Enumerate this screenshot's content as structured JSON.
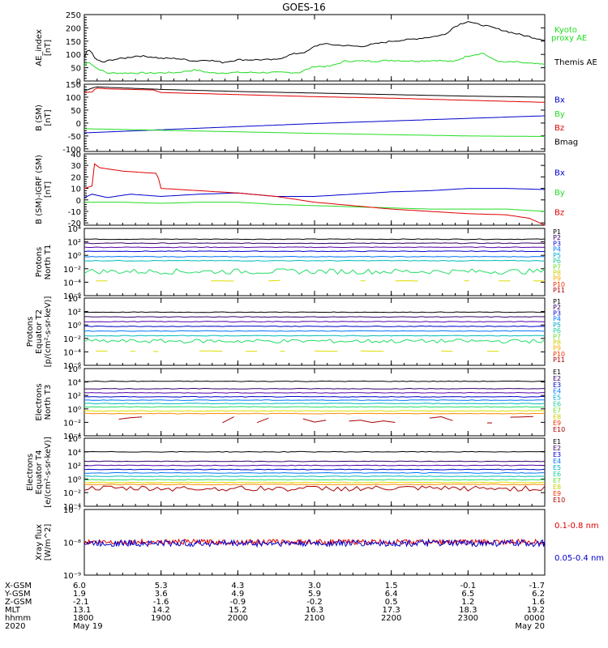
{
  "title": "GOES-16",
  "colors": {
    "black": "#000000",
    "red": "#e00000",
    "green": "#22dd22",
    "blue": "#0000cc",
    "axis": "#000000"
  },
  "chart_data": [
    {
      "type": "line",
      "id": "ae",
      "ylabel": [
        "AE_index",
        "[nT]"
      ],
      "ylim": [
        0,
        250
      ],
      "yticks": [
        "0",
        "50",
        "100",
        "150",
        "200",
        "250"
      ],
      "legend": [
        {
          "text": "Kyoto",
          "color": "#22dd22"
        },
        {
          "text": "proxy AE",
          "color": "#22dd22"
        },
        {
          "text": "Themis AE",
          "color": "#000000"
        }
      ],
      "series": [
        {
          "name": "Kyoto proxy AE",
          "color": "#22dd22",
          "x": [
            0,
            0.05,
            0.15,
            0.3,
            0.55,
            0.9,
            1.2,
            1.45,
            1.65,
            2.0,
            2.4,
            2.8,
            3.0,
            3.2,
            3.4,
            3.6,
            3.8,
            4.0,
            4.3,
            4.6,
            4.8,
            5.0,
            5.2,
            5.3,
            5.45,
            5.6,
            5.8,
            6.0
          ],
          "y": [
            55,
            75,
            50,
            30,
            30,
            30,
            32,
            42,
            30,
            32,
            32,
            32,
            55,
            55,
            75,
            75,
            75,
            78,
            75,
            78,
            72,
            95,
            105,
            85,
            70,
            72,
            66,
            62
          ]
        },
        {
          "name": "Themis AE",
          "color": "#000000",
          "x": [
            0,
            0.05,
            0.1,
            0.15,
            0.25,
            0.35,
            0.5,
            0.7,
            0.9,
            1.0,
            1.2,
            1.45,
            1.6,
            1.8,
            2.0,
            2.2,
            2.5,
            2.7,
            2.9,
            3.0,
            3.1,
            3.3,
            3.6,
            3.8,
            4.0,
            4.2,
            4.5,
            4.7,
            4.8,
            4.9,
            5.0,
            5.1,
            5.2,
            5.4,
            5.6,
            5.75,
            5.9,
            6.0
          ],
          "y": [
            90,
            120,
            105,
            80,
            70,
            80,
            85,
            95,
            90,
            85,
            85,
            75,
            80,
            70,
            80,
            80,
            80,
            100,
            110,
            130,
            140,
            135,
            130,
            140,
            150,
            155,
            165,
            175,
            200,
            215,
            225,
            215,
            210,
            195,
            180,
            170,
            160,
            155
          ]
        }
      ]
    },
    {
      "type": "line",
      "id": "bsm",
      "ylabel": [
        "B (SM)",
        "[nT]"
      ],
      "ylim": [
        -110,
        150
      ],
      "yticks": [
        "-100",
        "-50",
        "0",
        "50",
        "100",
        "150"
      ],
      "ytickvals": [
        -100,
        -50,
        0,
        50,
        100,
        150
      ],
      "legend": [
        {
          "text": "Bx",
          "color": "#0000cc"
        },
        {
          "text": "By",
          "color": "#22dd22"
        },
        {
          "text": "Bz",
          "color": "#e00000"
        },
        {
          "text": "Bmag",
          "color": "#000000"
        }
      ],
      "series": [
        {
          "name": "Bx",
          "color": "#0000cc",
          "x": [
            0,
            1,
            2,
            3,
            4,
            5,
            6
          ],
          "y": [
            -38,
            -26,
            -14,
            -2,
            8,
            18,
            28
          ]
        },
        {
          "name": "By",
          "color": "#22dd22",
          "x": [
            0,
            1,
            2,
            3,
            4,
            5,
            6
          ],
          "y": [
            -22,
            -28,
            -34,
            -40,
            -45,
            -50,
            -52
          ]
        },
        {
          "name": "Bz",
          "color": "#e00000",
          "x": [
            0,
            0.1,
            0.15,
            0.3,
            0.9,
            1.0,
            2,
            3,
            4,
            5,
            6
          ],
          "y": [
            118,
            120,
            135,
            132,
            128,
            118,
            110,
            102,
            96,
            88,
            80
          ]
        },
        {
          "name": "Bmag",
          "color": "#000000",
          "x": [
            0,
            0.15,
            0.3,
            1,
            2,
            3,
            4,
            5,
            6
          ],
          "y": [
            124,
            140,
            138,
            130,
            122,
            116,
            110,
            104,
            100
          ]
        }
      ]
    },
    {
      "type": "line",
      "id": "bigrf",
      "ylabel": [
        "B (SM)-IGRF (SM)",
        "[nT]"
      ],
      "ylim": [
        -22,
        40
      ],
      "yticks": [
        "-20",
        "-10",
        "0",
        "10",
        "20",
        "30",
        "40"
      ],
      "ytickvals": [
        -20,
        -10,
        0,
        10,
        20,
        30,
        40
      ],
      "legend": [
        {
          "text": "Bx",
          "color": "#0000cc"
        },
        {
          "text": "By",
          "color": "#22dd22"
        },
        {
          "text": "Bz",
          "color": "#e00000"
        }
      ],
      "series": [
        {
          "name": "Bx",
          "color": "#0000cc",
          "x": [
            0,
            0.1,
            0.3,
            0.6,
            1.0,
            1.5,
            2.0,
            2.5,
            3.0,
            3.5,
            4.0,
            4.5,
            5.0,
            5.5,
            6.0
          ],
          "y": [
            2,
            5,
            2,
            5,
            3,
            5,
            6,
            3,
            3,
            5,
            7,
            8,
            10,
            10,
            9
          ]
        },
        {
          "name": "By",
          "color": "#22dd22",
          "x": [
            0,
            0.5,
            1.0,
            1.5,
            2.0,
            2.5,
            3.0,
            3.5,
            4.0,
            4.5,
            5.0,
            5.5,
            6.0
          ],
          "y": [
            -2,
            -2,
            -3,
            -2,
            -2,
            -4,
            -5,
            -6,
            -7,
            -8,
            -8,
            -8,
            -10
          ]
        },
        {
          "name": "Bz",
          "color": "#e00000",
          "x": [
            0,
            0.1,
            0.12,
            0.2,
            0.5,
            0.95,
            1.0,
            1.5,
            2.0,
            2.5,
            3.0,
            3.5,
            4.0,
            4.5,
            5.0,
            5.5,
            5.8,
            6.0
          ],
          "y": [
            10,
            12,
            32,
            28,
            25,
            23,
            10,
            8,
            6,
            3,
            -2,
            -5,
            -8,
            -10,
            -12,
            -13,
            -16,
            -22
          ]
        }
      ]
    },
    {
      "type": "line",
      "id": "pn",
      "ylabel": [
        "Protons",
        "North T1"
      ],
      "log": true,
      "ylim": [
        -6,
        4
      ],
      "yticks": [
        "10⁴",
        "10²",
        "10⁰",
        "10⁻²",
        "10⁻⁴",
        "10⁻⁶"
      ],
      "ytickvals": [
        4,
        2,
        0,
        -2,
        -4,
        -6
      ],
      "legend": [
        {
          "text": "P1",
          "color": "#000000"
        },
        {
          "text": "P2",
          "color": "#330066"
        },
        {
          "text": "P3",
          "color": "#0000cc"
        },
        {
          "text": "P4",
          "color": "#0077ff"
        },
        {
          "text": "P5",
          "color": "#00aacc"
        },
        {
          "text": "P6",
          "color": "#22cc99"
        },
        {
          "text": "P7",
          "color": "#66dd22"
        },
        {
          "text": "P8",
          "color": "#cccc00"
        },
        {
          "text": "P9",
          "color": "#ffaa00"
        },
        {
          "text": "P10",
          "color": "#ee3300"
        },
        {
          "text": "P11",
          "color": "#aa0000"
        }
      ],
      "series": [
        {
          "name": "P1",
          "color": "#000000",
          "level": 2.4
        },
        {
          "name": "P2",
          "color": "#330066",
          "level": 1.8
        },
        {
          "name": "P3",
          "color": "#5500aa",
          "level": 1.2
        },
        {
          "name": "P4",
          "color": "#0000cc",
          "level": 0.6
        },
        {
          "name": "P5",
          "color": "#0077ff",
          "level": -0.2
        },
        {
          "name": "P6",
          "color": "#00bbbb",
          "level": -0.8
        },
        {
          "name": "P7",
          "color": "#22dd66",
          "level": -2.4,
          "noise": 0.4
        },
        {
          "name": "P8",
          "color": "#dddd00",
          "level": -3.8,
          "sparse": true
        }
      ]
    },
    {
      "type": "line",
      "id": "pe",
      "ylabel": [
        "Protons",
        "Equator T2",
        "[p/(cm²-s-sr-keV)]"
      ],
      "log": true,
      "ylim": [
        -6,
        4
      ],
      "yticks": [
        "10⁴",
        "10²",
        "10⁰",
        "10⁻²",
        "10⁻⁴",
        "10⁻⁶"
      ],
      "ytickvals": [
        4,
        2,
        0,
        -2,
        -4,
        -6
      ],
      "legend": [
        {
          "text": "P1",
          "color": "#000000"
        },
        {
          "text": "P2",
          "color": "#330066"
        },
        {
          "text": "P3",
          "color": "#0000cc"
        },
        {
          "text": "P4",
          "color": "#0077ff"
        },
        {
          "text": "P5",
          "color": "#00aacc"
        },
        {
          "text": "P6",
          "color": "#22cc99"
        },
        {
          "text": "P7",
          "color": "#66dd22"
        },
        {
          "text": "P8",
          "color": "#cccc00"
        },
        {
          "text": "P9",
          "color": "#ffaa00"
        },
        {
          "text": "P10",
          "color": "#ee3300"
        },
        {
          "text": "P11",
          "color": "#aa0000"
        }
      ],
      "series": [
        {
          "name": "P1",
          "color": "#000000",
          "level": 1.9
        },
        {
          "name": "P2",
          "color": "#330066",
          "level": 1.2
        },
        {
          "name": "P3",
          "color": "#5500aa",
          "level": 0.5
        },
        {
          "name": "P4",
          "color": "#0000cc",
          "level": -0.2
        },
        {
          "name": "P5",
          "color": "#0077ff",
          "level": -0.9
        },
        {
          "name": "P6",
          "color": "#00bbbb",
          "level": -1.6
        },
        {
          "name": "P7",
          "color": "#22dd66",
          "level": -2.4,
          "noise": 0.3
        },
        {
          "name": "P8",
          "color": "#dddd00",
          "level": -3.9,
          "sparse": true
        }
      ]
    },
    {
      "type": "line",
      "id": "en",
      "ylabel": [
        "Electrons",
        "North T3"
      ],
      "log": true,
      "ylim": [
        -4,
        6
      ],
      "yticks": [
        "10⁶",
        "10⁴",
        "10²",
        "10⁰",
        "10⁻²",
        "10⁻⁴"
      ],
      "ytickvals": [
        6,
        4,
        2,
        0,
        -2,
        -4
      ],
      "legend": [
        {
          "text": "E1",
          "color": "#000000"
        },
        {
          "text": "E2",
          "color": "#330066"
        },
        {
          "text": "E3",
          "color": "#0000cc"
        },
        {
          "text": "E4",
          "color": "#0077ff"
        },
        {
          "text": "E5",
          "color": "#00aacc"
        },
        {
          "text": "E6",
          "color": "#22cc99"
        },
        {
          "text": "E7",
          "color": "#66dd22"
        },
        {
          "text": "E8",
          "color": "#cccc00"
        },
        {
          "text": "E9",
          "color": "#ee3300"
        },
        {
          "text": "E10",
          "color": "#aa0000"
        }
      ],
      "series": [
        {
          "name": "E1",
          "color": "#000000",
          "level": 4.1
        },
        {
          "name": "E2",
          "color": "#330066",
          "level": 3.0
        },
        {
          "name": "E3",
          "color": "#5500aa",
          "level": 2.4
        },
        {
          "name": "E4",
          "color": "#0000cc",
          "level": 1.8
        },
        {
          "name": "E5",
          "color": "#0077ff",
          "level": 1.3
        },
        {
          "name": "E6",
          "color": "#00bbbb",
          "level": 0.8
        },
        {
          "name": "E7",
          "color": "#22dd66",
          "level": 0.3
        },
        {
          "name": "E8",
          "color": "#dddd00",
          "level": -0.3
        },
        {
          "name": "E9",
          "color": "#ff8800",
          "level": -0.7
        },
        {
          "name": "E10",
          "color": "#aa0000",
          "level": -1.6,
          "noise": 0.5,
          "sparse": true
        }
      ]
    },
    {
      "type": "line",
      "id": "ee",
      "ylabel": [
        "Electrons",
        "Equator T4",
        "[e/(cm²-s-sr-keV)]"
      ],
      "log": true,
      "ylim": [
        -4,
        6
      ],
      "yticks": [
        "10⁶",
        "10⁴",
        "10²",
        "10⁰",
        "10⁻²",
        "10⁻⁴"
      ],
      "ytickvals": [
        6,
        4,
        2,
        0,
        -2,
        -4
      ],
      "legend": [
        {
          "text": "E1",
          "color": "#000000"
        },
        {
          "text": "E2",
          "color": "#330066"
        },
        {
          "text": "E3",
          "color": "#0000cc"
        },
        {
          "text": "E4",
          "color": "#0077ff"
        },
        {
          "text": "E5",
          "color": "#00aacc"
        },
        {
          "text": "E6",
          "color": "#22cc99"
        },
        {
          "text": "E7",
          "color": "#66dd22"
        },
        {
          "text": "E8",
          "color": "#cccc00"
        },
        {
          "text": "E9",
          "color": "#ee3300"
        },
        {
          "text": "E10",
          "color": "#aa0000"
        }
      ],
      "series": [
        {
          "name": "E1",
          "color": "#000000",
          "level": 4.0
        },
        {
          "name": "E2",
          "color": "#330066",
          "level": 2.6
        },
        {
          "name": "E3",
          "color": "#5500aa",
          "level": 2.0
        },
        {
          "name": "E4",
          "color": "#0000cc",
          "level": 1.4
        },
        {
          "name": "E5",
          "color": "#0077ff",
          "level": 0.9
        },
        {
          "name": "E6",
          "color": "#00bbbb",
          "level": 0.4
        },
        {
          "name": "E7",
          "color": "#22dd66",
          "level": -0.1
        },
        {
          "name": "E8",
          "color": "#dddd00",
          "level": -0.5
        },
        {
          "name": "E9",
          "color": "#ff8800",
          "level": -0.8
        },
        {
          "name": "E10",
          "color": "#aa0000",
          "level": -1.4,
          "noise": 0.4
        }
      ]
    },
    {
      "type": "line",
      "id": "xray",
      "ylabel": [
        "Xray flux",
        "[W/m^2]"
      ],
      "log": true,
      "ylim": [
        -9,
        -7
      ],
      "yticks": [
        "10⁻⁷",
        "10⁻⁸",
        "10⁻⁹"
      ],
      "ytickvals": [
        -7,
        -8,
        -9
      ],
      "legend": [
        {
          "text": "0.1-0.8 nm",
          "color": "#e00000"
        },
        {
          "text": "0.05-0.4 nm",
          "color": "#0000cc"
        }
      ],
      "series": [
        {
          "name": "0.1-0.8 nm",
          "color": "#e00000",
          "level": -7.99,
          "noise": 0.08
        },
        {
          "name": "0.05-0.4 nm",
          "color": "#0000cc",
          "level": -8.03,
          "noise": 0.1
        }
      ]
    }
  ],
  "time_axis": {
    "rows": [
      {
        "label": "X-GSM",
        "values": [
          "6.0",
          "5.3",
          "4.3",
          "3.0",
          "1.5",
          "-0.1",
          "-1.7"
        ]
      },
      {
        "label": "Y-GSM",
        "values": [
          "1.9",
          "3.6",
          "4.9",
          "5.9",
          "6.4",
          "6.5",
          "6.2"
        ]
      },
      {
        "label": "Z-GSM",
        "values": [
          "-2.1",
          "-1.6",
          "-0.9",
          "-0.2",
          "0.5",
          "1.2",
          "1.6"
        ]
      },
      {
        "label": "MLT",
        "values": [
          "13.1",
          "14.2",
          "15.2",
          "16.3",
          "17.3",
          "18.3",
          "19.2"
        ]
      },
      {
        "label": "hhmm",
        "values": [
          "1800",
          "1900",
          "2000",
          "2100",
          "2200",
          "2300",
          "0000"
        ]
      }
    ],
    "year": "2020",
    "date_left": "May 19",
    "date_right": "May 20"
  }
}
